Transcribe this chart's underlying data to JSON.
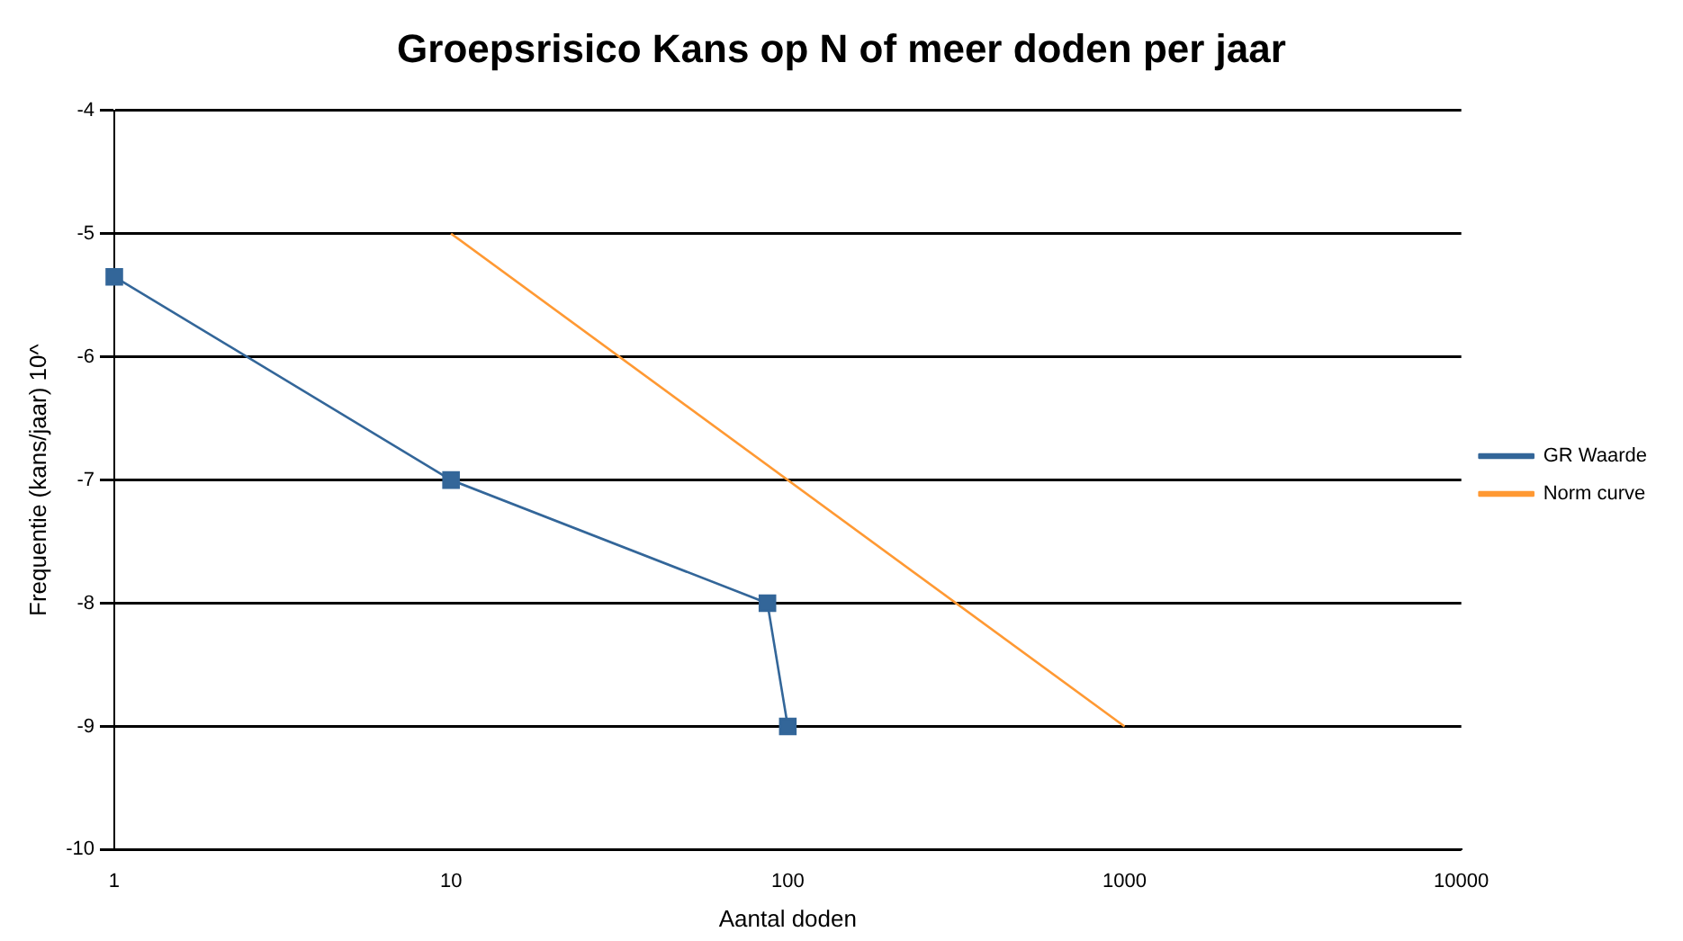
{
  "chart_data": {
    "type": "line",
    "title": "Groepsrisico Kans op N of meer doden per jaar",
    "xlabel": "Aantal doden",
    "ylabel": "Frequentie (kans/jaar) 10^",
    "log": "x",
    "xlim": [
      1,
      10000
    ],
    "xticks": [
      1,
      10,
      100,
      1000,
      10000
    ],
    "ylim": [
      -10,
      -4
    ],
    "yticks": [
      -10,
      -9,
      -8,
      -7,
      -6,
      -5,
      -4
    ],
    "grid": "y",
    "legend": "right",
    "series": [
      {
        "name": "GR Waarde",
        "color": "#336699",
        "x": [
          1,
          10,
          87,
          100
        ],
        "values": [
          -5.35,
          -7,
          -8,
          -9
        ],
        "marker": "square"
      },
      {
        "name": "Norm curve",
        "color": "#ff9933",
        "x": [
          10,
          1000
        ],
        "values": [
          -5,
          -9
        ],
        "marker": "none"
      }
    ]
  }
}
